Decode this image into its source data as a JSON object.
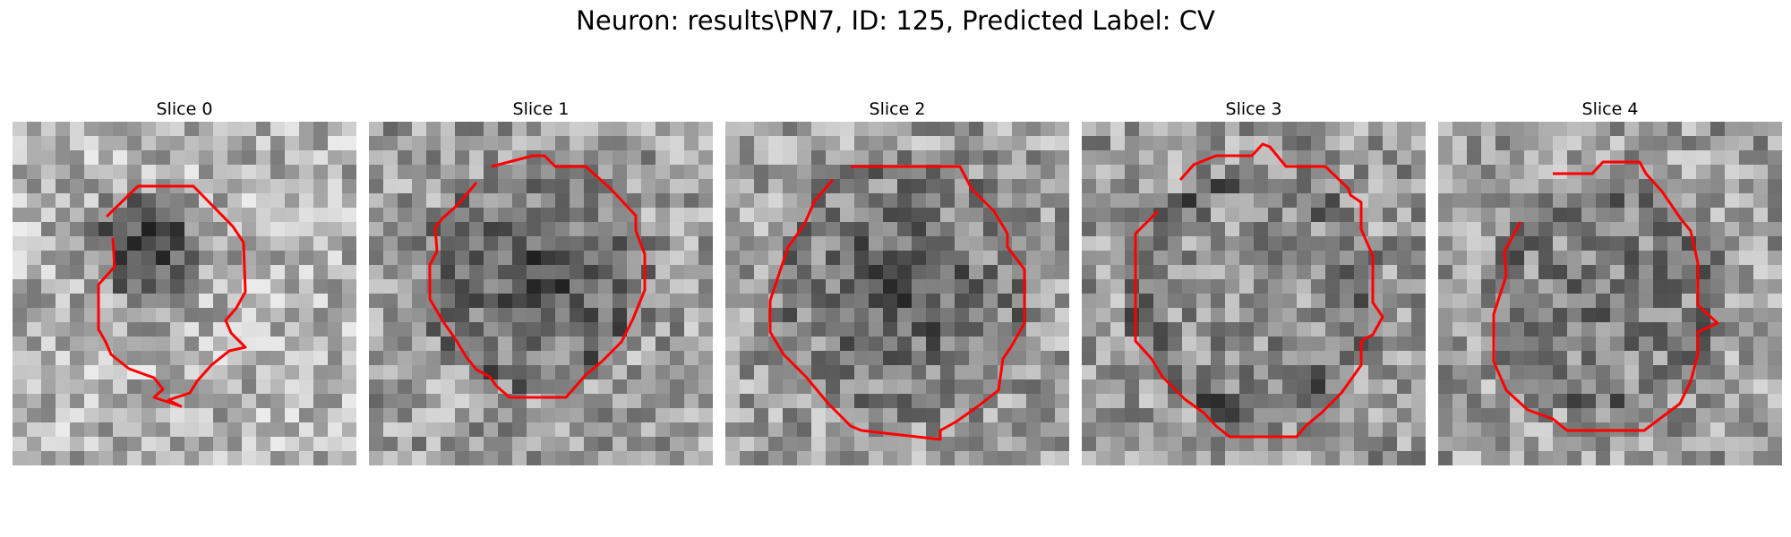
{
  "figure": {
    "title": "Neuron: results\\PN7, ID: 125, Predicted Label: CV",
    "contour_color": "#ff0000"
  },
  "slices": [
    {
      "title": "Slice 0"
    },
    {
      "title": "Slice 1"
    },
    {
      "title": "Slice 2"
    },
    {
      "title": "Slice 3"
    },
    {
      "title": "Slice 4"
    }
  ]
}
